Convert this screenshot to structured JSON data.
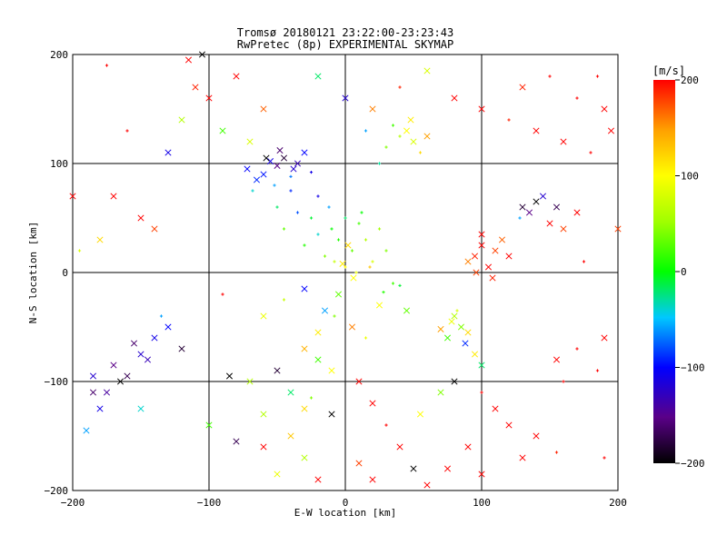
{
  "chart_data": [
    {
      "type": "scatter",
      "title": "Tromsø 20180121 23:22:00-23:23:43",
      "subtitle": "RwPretec (8p) EXPERIMENTAL SKYMAP",
      "xlabel": "E-W location [km]",
      "ylabel": "N-S location [km]",
      "xlim": [
        -200,
        200
      ],
      "ylim": [
        -200,
        200
      ],
      "xticks": [
        "−200",
        "−100",
        "0",
        "100",
        "200"
      ],
      "yticks": [
        "−200",
        "−100",
        "0",
        "100",
        "200"
      ],
      "grid": true,
      "marker_styles": [
        "x",
        "+"
      ],
      "points": [
        [
          -38,
          95,
          -120,
          "x"
        ],
        [
          -50,
          98,
          -150,
          "x"
        ],
        [
          -55,
          102,
          -110,
          "x"
        ],
        [
          -60,
          90,
          -95,
          "x"
        ],
        [
          -45,
          105,
          -180,
          "x"
        ],
        [
          -35,
          100,
          -130,
          "x"
        ],
        [
          -65,
          85,
          -90,
          "x"
        ],
        [
          -30,
          110,
          -100,
          "x"
        ],
        [
          -52,
          80,
          -60,
          "+"
        ],
        [
          -68,
          75,
          -40,
          "+"
        ],
        [
          -40,
          88,
          -70,
          "+"
        ],
        [
          -58,
          105,
          -200,
          "x"
        ],
        [
          -25,
          92,
          -110,
          "+"
        ],
        [
          -72,
          95,
          -100,
          "x"
        ],
        [
          -48,
          112,
          -160,
          "x"
        ],
        [
          -170,
          -85,
          -150,
          "x"
        ],
        [
          -160,
          -95,
          -170,
          "x"
        ],
        [
          -150,
          -75,
          -120,
          "x"
        ],
        [
          -140,
          -60,
          -110,
          "x"
        ],
        [
          -155,
          -65,
          -160,
          "x"
        ],
        [
          -165,
          -100,
          -200,
          "x"
        ],
        [
          -175,
          -110,
          -140,
          "x"
        ],
        [
          -145,
          -80,
          -130,
          "x"
        ],
        [
          -130,
          -50,
          -100,
          "x"
        ],
        [
          -185,
          -95,
          -120,
          "x"
        ],
        [
          -120,
          -70,
          -180,
          "x"
        ],
        [
          -180,
          -125,
          -110,
          "x"
        ],
        [
          -150,
          -125,
          -40,
          "x"
        ],
        [
          -135,
          -40,
          -60,
          "+"
        ],
        [
          -10,
          40,
          0,
          "+"
        ],
        [
          -5,
          30,
          10,
          "+"
        ],
        [
          0,
          50,
          -20,
          "+"
        ],
        [
          5,
          20,
          30,
          "+"
        ],
        [
          -20,
          35,
          -40,
          "+"
        ],
        [
          10,
          45,
          20,
          "+"
        ],
        [
          -15,
          15,
          40,
          "+"
        ],
        [
          15,
          30,
          60,
          "+"
        ],
        [
          -25,
          50,
          -10,
          "+"
        ],
        [
          20,
          10,
          80,
          "+"
        ],
        [
          0,
          5,
          100,
          "+"
        ],
        [
          8,
          0,
          90,
          "+"
        ],
        [
          -8,
          10,
          70,
          "+"
        ],
        [
          25,
          40,
          50,
          "+"
        ],
        [
          -30,
          25,
          10,
          "+"
        ],
        [
          30,
          20,
          40,
          "+"
        ],
        [
          -12,
          60,
          -60,
          "+"
        ],
        [
          12,
          55,
          0,
          "+"
        ],
        [
          2,
          25,
          120,
          "x"
        ],
        [
          -2,
          8,
          110,
          "x"
        ],
        [
          6,
          -5,
          100,
          "x"
        ],
        [
          18,
          5,
          130,
          "+"
        ],
        [
          35,
          -10,
          20,
          "+"
        ],
        [
          28,
          -18,
          10,
          "+"
        ],
        [
          40,
          -12,
          -10,
          "+"
        ],
        [
          -35,
          55,
          -80,
          "+"
        ],
        [
          -45,
          40,
          30,
          "+"
        ],
        [
          -50,
          60,
          -20,
          "+"
        ],
        [
          -40,
          75,
          -90,
          "+"
        ],
        [
          -20,
          70,
          -110,
          "+"
        ],
        [
          45,
          130,
          100,
          "x"
        ],
        [
          50,
          120,
          80,
          "x"
        ],
        [
          40,
          125,
          60,
          "+"
        ],
        [
          55,
          110,
          120,
          "+"
        ],
        [
          30,
          115,
          40,
          "+"
        ],
        [
          60,
          125,
          150,
          "x"
        ],
        [
          35,
          135,
          20,
          "+"
        ],
        [
          48,
          140,
          110,
          "x"
        ],
        [
          25,
          100,
          -30,
          "+"
        ],
        [
          15,
          130,
          -60,
          "+"
        ],
        [
          100,
          25,
          200,
          "x"
        ],
        [
          110,
          20,
          180,
          "x"
        ],
        [
          95,
          15,
          190,
          "x"
        ],
        [
          105,
          5,
          200,
          "x"
        ],
        [
          115,
          30,
          170,
          "x"
        ],
        [
          100,
          35,
          200,
          "x"
        ],
        [
          90,
          10,
          160,
          "x"
        ],
        [
          120,
          15,
          200,
          "x"
        ],
        [
          108,
          -5,
          190,
          "x"
        ],
        [
          96,
          0,
          180,
          "x"
        ],
        [
          80,
          -40,
          60,
          "x"
        ],
        [
          85,
          -50,
          40,
          "x"
        ],
        [
          78,
          -45,
          90,
          "x"
        ],
        [
          90,
          -55,
          120,
          "x"
        ],
        [
          75,
          -60,
          20,
          "x"
        ],
        [
          82,
          -35,
          80,
          "+"
        ],
        [
          88,
          -65,
          -90,
          "x"
        ],
        [
          70,
          -52,
          150,
          "x"
        ],
        [
          95,
          -75,
          110,
          "x"
        ],
        [
          100,
          -85,
          -20,
          "x"
        ],
        [
          130,
          60,
          -180,
          "x"
        ],
        [
          140,
          65,
          -200,
          "x"
        ],
        [
          135,
          55,
          -150,
          "x"
        ],
        [
          145,
          70,
          -120,
          "x"
        ],
        [
          128,
          50,
          -60,
          "+"
        ],
        [
          150,
          45,
          200,
          "x"
        ],
        [
          160,
          40,
          180,
          "x"
        ],
        [
          155,
          60,
          -170,
          "x"
        ],
        [
          170,
          55,
          200,
          "x"
        ],
        [
          -120,
          140,
          60,
          "x"
        ],
        [
          -100,
          160,
          200,
          "x"
        ],
        [
          -80,
          180,
          200,
          "x"
        ],
        [
          -60,
          150,
          170,
          "x"
        ],
        [
          -90,
          130,
          20,
          "x"
        ],
        [
          -110,
          170,
          190,
          "x"
        ],
        [
          -70,
          120,
          80,
          "x"
        ],
        [
          -130,
          110,
          -110,
          "x"
        ],
        [
          -150,
          50,
          200,
          "x"
        ],
        [
          -170,
          70,
          200,
          "x"
        ],
        [
          -160,
          130,
          200,
          "+"
        ],
        [
          -180,
          30,
          120,
          "x"
        ],
        [
          -140,
          40,
          180,
          "x"
        ],
        [
          -105,
          200,
          -200,
          "x"
        ],
        [
          -115,
          195,
          200,
          "x"
        ],
        [
          -20,
          180,
          -20,
          "x"
        ],
        [
          0,
          160,
          -120,
          "x"
        ],
        [
          20,
          150,
          160,
          "x"
        ],
        [
          40,
          170,
          190,
          "+"
        ],
        [
          60,
          185,
          80,
          "x"
        ],
        [
          80,
          160,
          200,
          "x"
        ],
        [
          100,
          150,
          200,
          "x"
        ],
        [
          120,
          140,
          190,
          "+"
        ],
        [
          140,
          130,
          200,
          "x"
        ],
        [
          160,
          120,
          200,
          "x"
        ],
        [
          180,
          110,
          200,
          "+"
        ],
        [
          190,
          150,
          200,
          "x"
        ],
        [
          170,
          160,
          200,
          "+"
        ],
        [
          150,
          180,
          200,
          "+"
        ],
        [
          130,
          170,
          190,
          "x"
        ],
        [
          -90,
          -20,
          200,
          "+"
        ],
        [
          -60,
          -40,
          90,
          "x"
        ],
        [
          -30,
          -70,
          140,
          "x"
        ],
        [
          -20,
          -80,
          20,
          "x"
        ],
        [
          -10,
          -90,
          100,
          "x"
        ],
        [
          -50,
          -90,
          -180,
          "x"
        ],
        [
          -70,
          -100,
          60,
          "x"
        ],
        [
          -85,
          -95,
          -200,
          "x"
        ],
        [
          -40,
          -110,
          -20,
          "x"
        ],
        [
          -25,
          -115,
          40,
          "+"
        ],
        [
          -100,
          -140,
          20,
          "x"
        ],
        [
          -80,
          -155,
          -170,
          "x"
        ],
        [
          -60,
          -130,
          60,
          "x"
        ],
        [
          -30,
          -125,
          120,
          "x"
        ],
        [
          -10,
          -130,
          -200,
          "x"
        ],
        [
          -40,
          -150,
          130,
          "x"
        ],
        [
          -60,
          -160,
          200,
          "x"
        ],
        [
          -30,
          -170,
          60,
          "x"
        ],
        [
          -50,
          -185,
          90,
          "x"
        ],
        [
          -20,
          -190,
          200,
          "x"
        ],
        [
          10,
          -100,
          200,
          "x"
        ],
        [
          20,
          -120,
          200,
          "x"
        ],
        [
          30,
          -140,
          200,
          "+"
        ],
        [
          40,
          -160,
          200,
          "x"
        ],
        [
          50,
          -180,
          -200,
          "x"
        ],
        [
          20,
          -190,
          200,
          "x"
        ],
        [
          10,
          -175,
          180,
          "x"
        ],
        [
          55,
          -130,
          100,
          "x"
        ],
        [
          70,
          -110,
          40,
          "x"
        ],
        [
          80,
          -100,
          -200,
          "x"
        ],
        [
          100,
          -110,
          200,
          "+"
        ],
        [
          110,
          -125,
          200,
          "x"
        ],
        [
          120,
          -140,
          200,
          "x"
        ],
        [
          140,
          -150,
          200,
          "x"
        ],
        [
          155,
          -165,
          190,
          "+"
        ],
        [
          130,
          -170,
          200,
          "x"
        ],
        [
          100,
          -185,
          200,
          "x"
        ],
        [
          90,
          -160,
          200,
          "x"
        ],
        [
          75,
          -180,
          200,
          "x"
        ],
        [
          60,
          -195,
          200,
          "x"
        ],
        [
          155,
          -80,
          200,
          "x"
        ],
        [
          170,
          -70,
          200,
          "+"
        ],
        [
          185,
          -90,
          200,
          "+"
        ],
        [
          190,
          -60,
          200,
          "x"
        ],
        [
          160,
          -100,
          200,
          "+"
        ],
        [
          -190,
          -145,
          -60,
          "x"
        ],
        [
          -185,
          -110,
          -160,
          "x"
        ],
        [
          -200,
          70,
          200,
          "x"
        ],
        [
          -195,
          20,
          80,
          "+"
        ],
        [
          -175,
          190,
          200,
          "+"
        ],
        [
          200,
          40,
          180,
          "x"
        ],
        [
          195,
          130,
          200,
          "x"
        ],
        [
          185,
          180,
          200,
          "+"
        ],
        [
          175,
          10,
          200,
          "+"
        ],
        [
          190,
          -170,
          200,
          "+"
        ],
        [
          -5,
          -20,
          30,
          "x"
        ],
        [
          -15,
          -35,
          -60,
          "x"
        ],
        [
          5,
          -50,
          160,
          "x"
        ],
        [
          15,
          -60,
          90,
          "+"
        ],
        [
          -20,
          -55,
          110,
          "x"
        ],
        [
          -30,
          -15,
          -100,
          "x"
        ],
        [
          -45,
          -25,
          70,
          "+"
        ],
        [
          -8,
          -40,
          40,
          "+"
        ],
        [
          25,
          -30,
          100,
          "x"
        ],
        [
          45,
          -35,
          30,
          "x"
        ]
      ]
    }
  ],
  "colorbar": {
    "unit": "[m/s]",
    "ticks": [
      "200",
      "100",
      "0",
      "−100",
      "−200"
    ],
    "min": -200,
    "max": 200
  }
}
